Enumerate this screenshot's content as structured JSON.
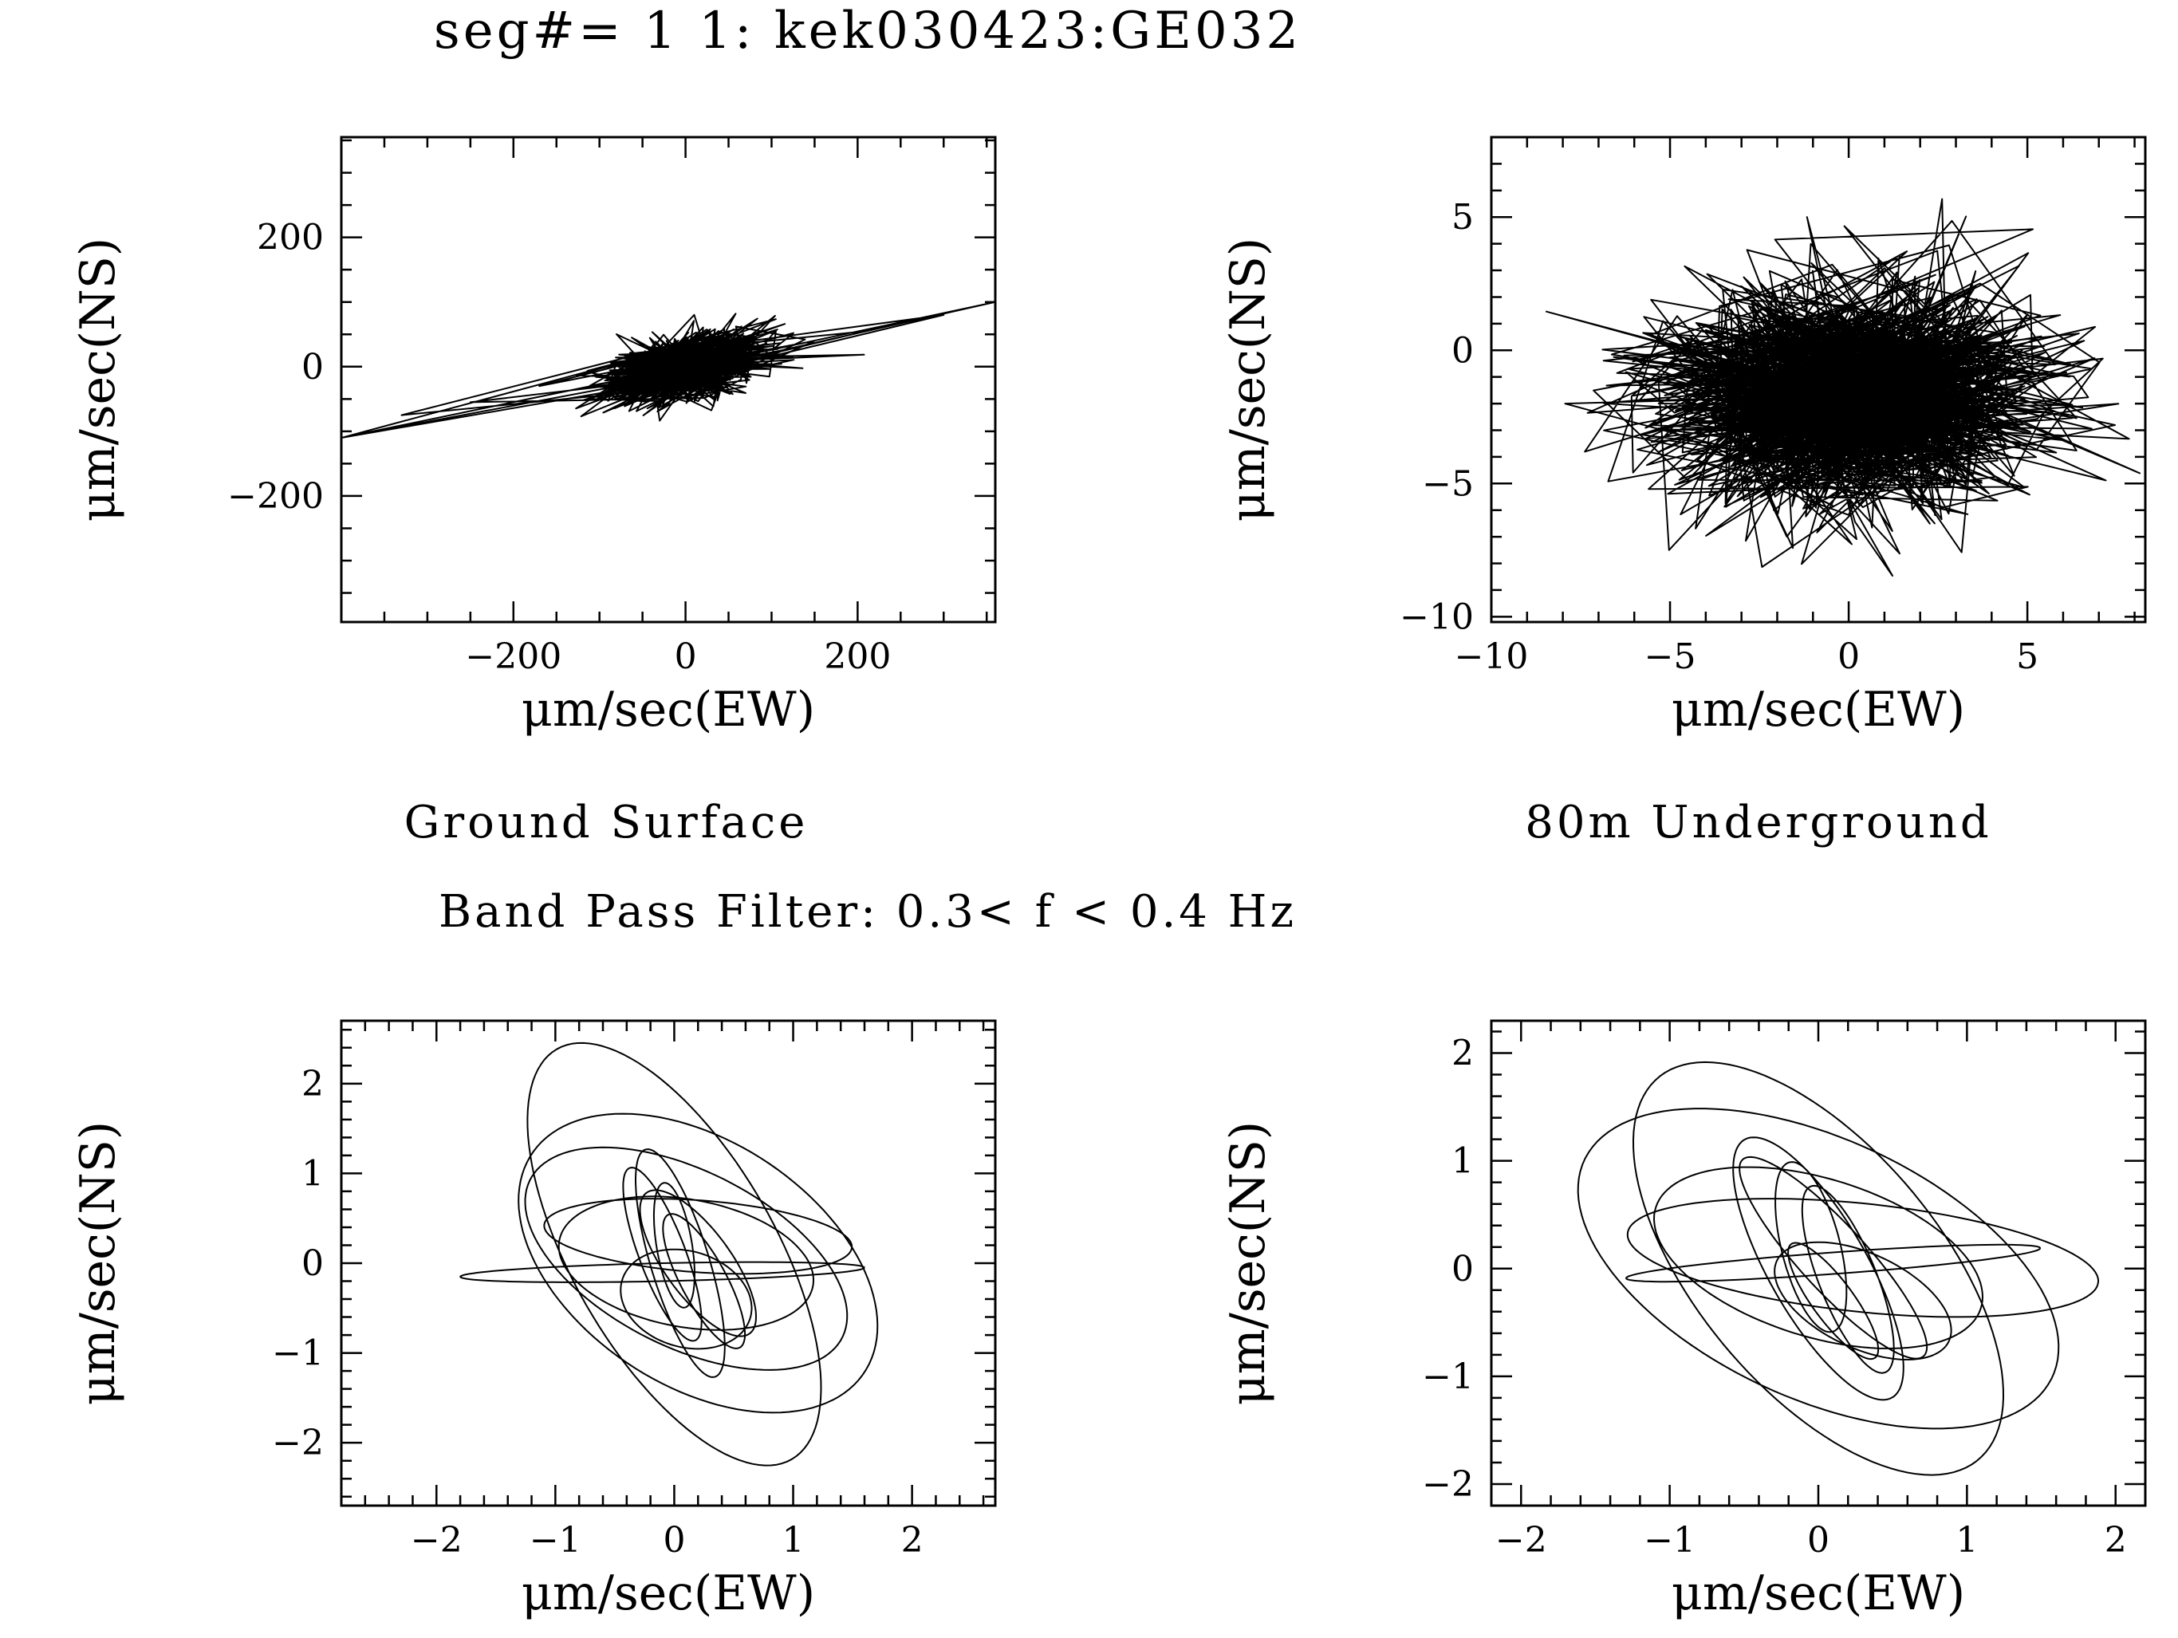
{
  "figure": {
    "title": "seg#=  1  1: kek030423:GE032",
    "caption_left": "Ground Surface",
    "caption_right": "80m Underground",
    "filter_label": "Band Pass Filter:  0.3< f <  0.4 Hz"
  },
  "chart_data": [
    {
      "name": "top-left",
      "type": "line",
      "subtitle": "Ground Surface",
      "xlabel": "μm/sec(EW)",
      "ylabel": "μm/sec(NS)",
      "xlim": [
        -400,
        360
      ],
      "ylim": [
        -395,
        355
      ],
      "xticks": [
        -200,
        0,
        200
      ],
      "yticks": [
        -200,
        0,
        200
      ],
      "xminor": 50,
      "yminor": 50,
      "trace": {
        "style": "dense-noise",
        "seed": 11,
        "cx": 0,
        "cy": 0,
        "sx": 45,
        "sy": 25,
        "npts": 900,
        "tilt": 0.28,
        "extra": [
          [
            -400,
            -110
          ],
          [
            360,
            100
          ],
          [
            -330,
            -75
          ],
          [
            300,
            80
          ],
          [
            -250,
            -55
          ],
          [
            210,
            55
          ],
          [
            -170,
            -30
          ],
          [
            150,
            40
          ]
        ]
      }
    },
    {
      "name": "top-right",
      "type": "line",
      "subtitle": "80m Underground",
      "xlabel": "μm/sec(EW)",
      "ylabel": "μm/sec(NS)",
      "xlim": [
        -10,
        8.3
      ],
      "ylim": [
        -10.2,
        8
      ],
      "xticks": [
        -10,
        -5,
        0,
        5
      ],
      "yticks": [
        -10,
        -5,
        0,
        5
      ],
      "xminor": 1,
      "yminor": 1,
      "trace": {
        "style": "dense-noise",
        "seed": 23,
        "cx": 0,
        "cy": -1.8,
        "sx": 2.7,
        "sy": 2.1,
        "npts": 1500,
        "tilt": 0
      }
    },
    {
      "name": "bottom-left",
      "type": "line",
      "xlabel": "μm/sec(EW)",
      "ylabel": "μm/sec(NS)",
      "xlim": [
        -2.8,
        2.7
      ],
      "ylim": [
        -2.7,
        2.7
      ],
      "xticks": [
        -2,
        -1,
        0,
        1,
        2
      ],
      "yticks": [
        -2,
        -1,
        0,
        1,
        2
      ],
      "xminor": 0.2,
      "yminor": 0.2,
      "trace": {
        "style": "ellipses",
        "ellipses": [
          [
            0.2,
            0.0,
            1.9,
            1.2,
            -0.9
          ],
          [
            0.0,
            0.1,
            2.5,
            0.9,
            -1.2
          ],
          [
            0.1,
            0.05,
            1.6,
            0.9,
            -0.7
          ],
          [
            0.2,
            0.3,
            1.3,
            0.4,
            -0.1
          ],
          [
            -0.1,
            -0.1,
            1.7,
            0.1,
            0.03
          ],
          [
            0.1,
            0.0,
            1.1,
            0.7,
            -0.3
          ],
          [
            -0.1,
            0.1,
            1.0,
            0.2,
            -1.3
          ],
          [
            0.05,
            0.0,
            1.3,
            0.25,
            -1.35
          ],
          [
            0.2,
            0.0,
            0.9,
            0.3,
            -1.1
          ],
          [
            0.0,
            0.2,
            0.7,
            0.15,
            -1.45
          ],
          [
            0.25,
            -0.2,
            0.8,
            0.2,
            -1.2
          ],
          [
            0.1,
            -0.4,
            0.6,
            0.5,
            -0.8
          ]
        ]
      }
    },
    {
      "name": "bottom-right",
      "type": "line",
      "xlabel": "μm/sec(EW)",
      "ylabel": "μm/sec(NS)",
      "xlim": [
        -2.2,
        2.2
      ],
      "ylim": [
        -2.2,
        2.3
      ],
      "xticks": [
        -2,
        -1,
        0,
        1,
        2
      ],
      "yticks": [
        -2,
        -1,
        0,
        1,
        2
      ],
      "xminor": 0.2,
      "yminor": 0.2,
      "trace": {
        "style": "ellipses",
        "ellipses": [
          [
            0.0,
            0.0,
            1.9,
            1.1,
            -0.7
          ],
          [
            0.0,
            0.0,
            2.1,
            0.9,
            -1.1
          ],
          [
            0.3,
            0.1,
            1.6,
            0.5,
            -0.15
          ],
          [
            0.0,
            0.1,
            1.2,
            0.7,
            -0.5
          ],
          [
            0.1,
            0.05,
            1.4,
            0.1,
            0.1
          ],
          [
            0.0,
            0.0,
            1.3,
            0.35,
            -1.2
          ],
          [
            0.1,
            0.1,
            1.1,
            0.25,
            -1.0
          ],
          [
            0.2,
            -0.1,
            0.9,
            0.2,
            -1.3
          ],
          [
            -0.05,
            0.2,
            0.8,
            0.2,
            -1.4
          ],
          [
            0.3,
            -0.3,
            0.7,
            0.4,
            -0.7
          ],
          [
            0.1,
            -0.3,
            0.6,
            0.15,
            -1.1
          ]
        ]
      }
    }
  ]
}
